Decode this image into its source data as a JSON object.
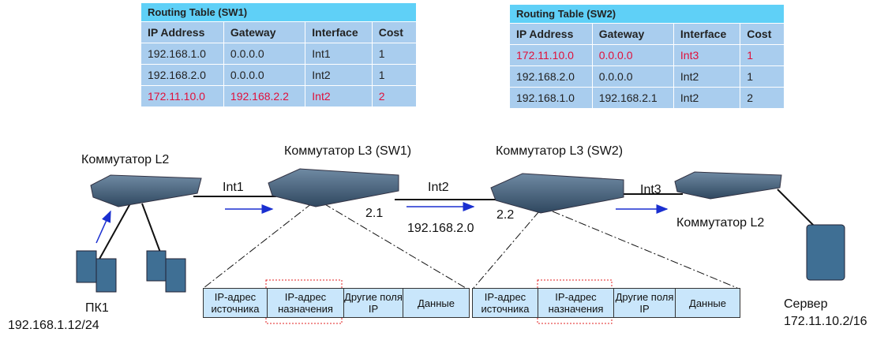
{
  "tables": [
    {
      "title": "Routing Table (SW1)",
      "header": [
        "IP Address",
        "Gateway",
        "Interface",
        "Cost"
      ],
      "rows": [
        [
          "192.168.1.0",
          "0.0.0.0",
          "Int1",
          "1"
        ],
        [
          "192.168.2.0",
          "0.0.0.0",
          "Int2",
          "1"
        ],
        [
          "172.11.10.0",
          "192.168.2.2",
          "Int2",
          "2"
        ]
      ],
      "highlight_row": 2
    },
    {
      "title": "Routing Table (SW2)",
      "header": [
        "IP Address",
        "Gateway",
        "Interface",
        "Cost"
      ],
      "rows": [
        [
          "172.11.10.0",
          "0.0.0.0",
          "Int3",
          "1"
        ],
        [
          "192.168.2.0",
          "0.0.0.0",
          "Int2",
          "1"
        ],
        [
          "192.168.1.0",
          "192.168.2.1",
          "Int2",
          "2"
        ]
      ],
      "highlight_row": 0
    }
  ],
  "devices": {
    "left_l2": "Коммутатор L2",
    "sw1": "Коммутатор L3 (SW1)",
    "sw2": "Коммутатор L3 (SW2)",
    "right_l2": "Коммутатор L2",
    "pc": "ПК1",
    "pc_ip": "192.168.1.12/24",
    "server": "Сервер",
    "server_ip": "172.11.10.2/16"
  },
  "links": {
    "int1": "Int1",
    "int2": "Int2",
    "int3": "Int3",
    "sw1_addr": "2.1",
    "sw2_addr": "2.2",
    "network": "192.168.2.0"
  },
  "packets": [
    {
      "cells": [
        "IP-адрес источника",
        "IP-адрес назначения",
        "Другие поля IP",
        "Данные"
      ]
    },
    {
      "cells": [
        "IP-адрес источника",
        "IP-адрес назначения",
        "Другие поля IP",
        "Данные"
      ]
    }
  ]
}
